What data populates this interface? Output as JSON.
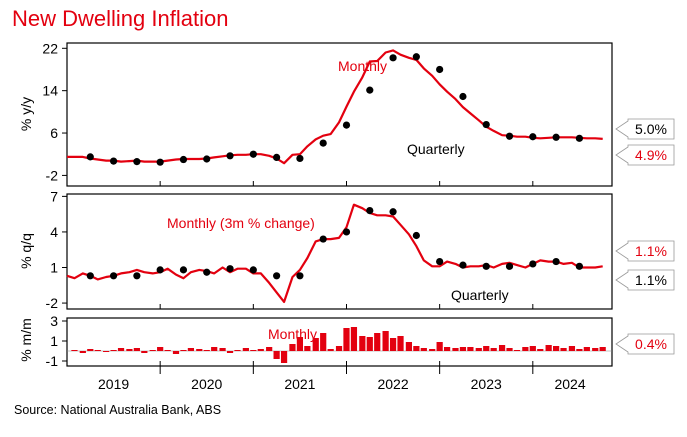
{
  "title": "New Dwelling Inflation",
  "source": "Source: National Australia Bank, ABS",
  "colors": {
    "accent": "#e3000f",
    "quarterly": "#000000",
    "axis": "#000000"
  },
  "chart_data": [
    {
      "type": "line",
      "panel": "annual",
      "ylabel": "% y/y",
      "yticks": [
        22,
        14,
        6,
        -2
      ],
      "ylim": [
        -4,
        23
      ],
      "xlim": [
        2018.5,
        2024.35
      ],
      "series": [
        {
          "name": "Monthly",
          "kind": "line",
          "x": [
            2018.5,
            2018.58,
            2018.67,
            2018.75,
            2018.83,
            2018.92,
            2019.0,
            2019.08,
            2019.17,
            2019.25,
            2019.33,
            2019.42,
            2019.5,
            2019.58,
            2019.67,
            2019.75,
            2019.83,
            2019.92,
            2020.0,
            2020.08,
            2020.17,
            2020.25,
            2020.33,
            2020.42,
            2020.5,
            2020.58,
            2020.67,
            2020.75,
            2020.83,
            2020.92,
            2021.0,
            2021.08,
            2021.17,
            2021.25,
            2021.33,
            2021.42,
            2021.5,
            2021.58,
            2021.67,
            2021.75,
            2021.83,
            2021.92,
            2022.0,
            2022.08,
            2022.17,
            2022.25,
            2022.33,
            2022.42,
            2022.5,
            2022.58,
            2022.67,
            2022.75,
            2022.83,
            2022.92,
            2023.0,
            2023.08,
            2023.17,
            2023.25,
            2023.33,
            2023.42,
            2023.5,
            2023.58,
            2023.67,
            2023.75,
            2023.83,
            2023.92,
            2024.0,
            2024.08,
            2024.17,
            2024.25
          ],
          "values": [
            1.5,
            1.5,
            1.5,
            1.2,
            1.0,
            0.8,
            0.8,
            0.6,
            0.7,
            0.8,
            0.6,
            0.6,
            0.6,
            0.8,
            1.0,
            1.1,
            1.1,
            1.1,
            1.2,
            1.4,
            1.6,
            1.8,
            1.9,
            1.9,
            2.0,
            2.0,
            1.7,
            1.2,
            0.3,
            1.9,
            2.0,
            3.5,
            4.8,
            5.5,
            5.8,
            8.0,
            11.0,
            13.8,
            16.5,
            19.5,
            19.6,
            21.2,
            21.6,
            20.8,
            20.2,
            19.8,
            18.2,
            16.8,
            15.2,
            13.8,
            12.4,
            10.9,
            9.7,
            8.4,
            7.2,
            6.4,
            5.6,
            5.5,
            5.3,
            5.3,
            5.1,
            5.0,
            5.1,
            5.2,
            5.2,
            5.2,
            5.1,
            5.0,
            5.0,
            4.9
          ]
        },
        {
          "name": "Quarterly",
          "kind": "scatter",
          "x": [
            2018.75,
            2019.0,
            2019.25,
            2019.5,
            2019.75,
            2020.0,
            2020.25,
            2020.5,
            2020.75,
            2021.0,
            2021.25,
            2021.5,
            2021.75,
            2022.0,
            2022.25,
            2022.5,
            2022.75,
            2023.0,
            2023.25,
            2023.5,
            2023.75,
            2024.0
          ],
          "values": [
            1.5,
            0.7,
            0.6,
            0.5,
            1.0,
            1.1,
            1.7,
            2.0,
            1.4,
            1.2,
            4.1,
            7.5,
            14.1,
            20.2,
            20.4,
            18.0,
            12.9,
            7.6,
            5.4,
            5.3,
            5.2,
            5.0
          ]
        }
      ],
      "annotations": [
        {
          "text": "Monthly",
          "color": "red"
        },
        {
          "text": "Quarterly",
          "color": "black"
        }
      ],
      "latest_labels": [
        {
          "text": "5.0%",
          "series": "Quarterly",
          "value": 5.0
        },
        {
          "text": "4.9%",
          "series": "Monthly",
          "value": 4.9
        }
      ]
    },
    {
      "type": "line",
      "panel": "quarterly",
      "ylabel": "% q/q",
      "yticks": [
        7,
        4,
        1,
        -2
      ],
      "ylim": [
        -2.5,
        7.2
      ],
      "xlim": [
        2018.5,
        2024.35
      ],
      "series": [
        {
          "name": "Monthly (3m % change)",
          "kind": "line",
          "x": [
            2018.5,
            2018.58,
            2018.67,
            2018.75,
            2018.83,
            2018.92,
            2019.0,
            2019.08,
            2019.17,
            2019.25,
            2019.33,
            2019.42,
            2019.5,
            2019.58,
            2019.67,
            2019.75,
            2019.83,
            2019.92,
            2020.0,
            2020.08,
            2020.17,
            2020.25,
            2020.33,
            2020.42,
            2020.5,
            2020.58,
            2020.67,
            2020.75,
            2020.83,
            2020.92,
            2021.0,
            2021.08,
            2021.17,
            2021.25,
            2021.33,
            2021.42,
            2021.5,
            2021.58,
            2021.67,
            2021.75,
            2021.83,
            2021.92,
            2022.0,
            2022.08,
            2022.17,
            2022.25,
            2022.33,
            2022.42,
            2022.5,
            2022.58,
            2022.67,
            2022.75,
            2022.83,
            2022.92,
            2023.0,
            2023.08,
            2023.17,
            2023.25,
            2023.33,
            2023.42,
            2023.5,
            2023.58,
            2023.67,
            2023.75,
            2023.83,
            2023.92,
            2024.0,
            2024.08,
            2024.17,
            2024.25
          ],
          "values": [
            0.3,
            0.1,
            0.5,
            0.3,
            0.0,
            0.2,
            0.3,
            0.5,
            0.6,
            0.8,
            0.6,
            0.5,
            0.6,
            0.9,
            0.4,
            0.1,
            0.6,
            0.8,
            0.7,
            0.5,
            1.0,
            0.6,
            0.9,
            0.9,
            0.5,
            0.5,
            -0.3,
            -1.1,
            -1.9,
            0.2,
            0.8,
            1.8,
            3.2,
            3.4,
            3.4,
            3.5,
            4.4,
            6.3,
            6.0,
            5.6,
            5.4,
            5.4,
            5.3,
            4.6,
            3.8,
            2.8,
            1.6,
            1.1,
            1.1,
            1.5,
            1.3,
            1.0,
            1.1,
            1.1,
            1.2,
            1.0,
            1.3,
            1.4,
            1.2,
            1.0,
            1.3,
            1.6,
            1.5,
            1.5,
            1.3,
            1.4,
            1.0,
            1.0,
            1.0,
            1.1
          ]
        },
        {
          "name": "Quarterly",
          "kind": "scatter",
          "x": [
            2018.75,
            2019.0,
            2019.25,
            2019.5,
            2019.75,
            2020.0,
            2020.25,
            2020.5,
            2020.75,
            2021.0,
            2021.25,
            2021.5,
            2021.75,
            2022.0,
            2022.25,
            2022.5,
            2022.75,
            2023.0,
            2023.25,
            2023.5,
            2023.75,
            2024.0
          ],
          "values": [
            0.3,
            0.3,
            0.3,
            0.8,
            0.8,
            0.6,
            0.9,
            0.8,
            0.3,
            0.3,
            3.4,
            4.0,
            5.8,
            5.7,
            3.7,
            1.5,
            1.2,
            1.1,
            1.1,
            1.3,
            1.5,
            1.1
          ]
        }
      ],
      "annotations": [
        {
          "text": "Monthly (3m % change)",
          "color": "red"
        },
        {
          "text": "Quarterly",
          "color": "black"
        }
      ],
      "latest_labels": [
        {
          "text": "1.1%",
          "series": "Monthly (3m % change)",
          "value": 1.1
        },
        {
          "text": "1.1%",
          "series": "Quarterly",
          "value": 1.1
        }
      ]
    },
    {
      "type": "bar",
      "panel": "monthly",
      "ylabel": "% m/m",
      "yticks": [
        3,
        1,
        -1
      ],
      "ylim": [
        -1.5,
        3.3
      ],
      "xlim": [
        2018.5,
        2024.35
      ],
      "series": [
        {
          "name": "Monthly",
          "kind": "bar",
          "x": [
            2018.58,
            2018.67,
            2018.75,
            2018.83,
            2018.92,
            2019.0,
            2019.08,
            2019.17,
            2019.25,
            2019.33,
            2019.42,
            2019.5,
            2019.58,
            2019.67,
            2019.75,
            2019.83,
            2019.92,
            2020.0,
            2020.08,
            2020.17,
            2020.25,
            2020.33,
            2020.42,
            2020.5,
            2020.58,
            2020.67,
            2020.75,
            2020.83,
            2020.92,
            2021.0,
            2021.08,
            2021.17,
            2021.25,
            2021.33,
            2021.42,
            2021.5,
            2021.58,
            2021.67,
            2021.75,
            2021.83,
            2021.92,
            2022.0,
            2022.08,
            2022.17,
            2022.25,
            2022.33,
            2022.42,
            2022.5,
            2022.58,
            2022.67,
            2022.75,
            2022.83,
            2022.92,
            2023.0,
            2023.08,
            2023.17,
            2023.25,
            2023.33,
            2023.42,
            2023.5,
            2023.58,
            2023.67,
            2023.75,
            2023.83,
            2023.92,
            2024.0,
            2024.08,
            2024.17,
            2024.25
          ],
          "values": [
            0.1,
            -0.2,
            0.2,
            0.1,
            -0.1,
            0.1,
            0.3,
            0.2,
            0.3,
            -0.2,
            0.1,
            0.4,
            0.1,
            -0.3,
            0.1,
            0.3,
            0.2,
            0.1,
            0.4,
            0.3,
            -0.2,
            0.1,
            0.3,
            0.1,
            0.2,
            0.4,
            -0.8,
            -1.2,
            0.7,
            1.4,
            0.5,
            1.3,
            1.8,
            0.2,
            0.5,
            2.3,
            2.4,
            1.5,
            1.4,
            1.8,
            2.0,
            1.3,
            1.5,
            0.9,
            0.5,
            0.3,
            0.2,
            0.9,
            0.4,
            0.3,
            0.4,
            0.4,
            0.3,
            0.5,
            0.3,
            0.6,
            0.3,
            0.1,
            0.4,
            0.5,
            0.2,
            0.6,
            0.5,
            0.3,
            0.5,
            0.2,
            0.4,
            0.3,
            0.4
          ]
        }
      ],
      "annotations": [
        {
          "text": "Monthly",
          "color": "red"
        }
      ],
      "latest_labels": [
        {
          "text": "0.4%",
          "series": "Monthly",
          "value": 0.4
        }
      ]
    }
  ],
  "x_axis": {
    "year_labels": [
      "2019",
      "2020",
      "2021",
      "2022",
      "2023",
      "2024"
    ],
    "year_centers": [
      2019.0,
      2020.0,
      2021.0,
      2022.0,
      2023.0,
      2023.9
    ],
    "year_boundaries": [
      2019.5,
      2020.5,
      2021.5,
      2022.5,
      2023.5
    ]
  }
}
